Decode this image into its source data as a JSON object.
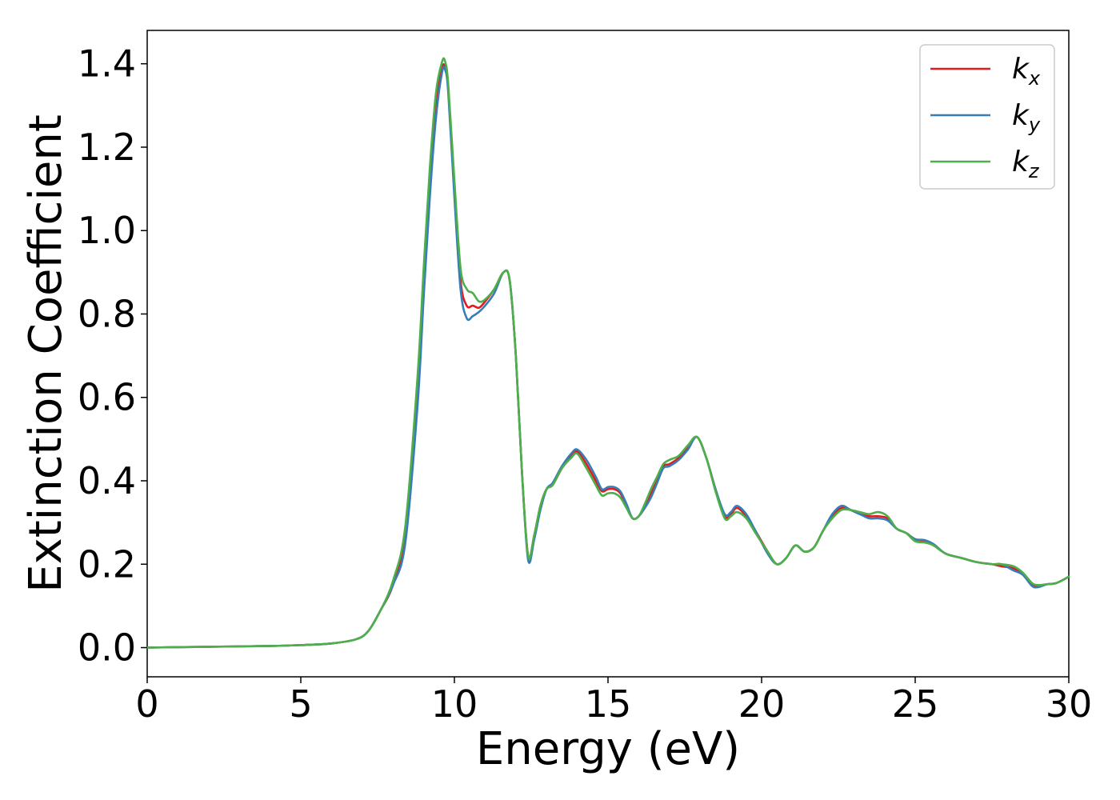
{
  "chart_data": {
    "type": "line",
    "title": "",
    "xlabel": "Energy (eV)",
    "ylabel": "Extinction Coefficient",
    "xlim": [
      0,
      30
    ],
    "ylim": [
      -0.07,
      1.48
    ],
    "xticks": [
      0,
      5,
      10,
      15,
      20,
      25,
      30
    ],
    "xtick_labels": [
      "0",
      "5",
      "10",
      "15",
      "20",
      "25",
      "30"
    ],
    "yticks": [
      0.0,
      0.2,
      0.4,
      0.6,
      0.8,
      1.0,
      1.2,
      1.4
    ],
    "ytick_labels": [
      "0.0",
      "0.2",
      "0.4",
      "0.6",
      "0.8",
      "1.0",
      "1.2",
      "1.4"
    ],
    "grid": false,
    "legend_position": "top-right",
    "series": [
      {
        "name": "k_x",
        "label_base": "k",
        "label_sub": "x",
        "color": "#e41a1c",
        "x": [
          0,
          2,
          4,
          5,
          6,
          6.8,
          7.2,
          7.6,
          8.0,
          8.4,
          8.8,
          9.0,
          9.2,
          9.4,
          9.6,
          9.7,
          9.8,
          10.0,
          10.2,
          10.4,
          10.6,
          10.8,
          11.0,
          11.3,
          11.6,
          11.8,
          12.0,
          12.2,
          12.4,
          12.6,
          12.8,
          13.0,
          13.2,
          13.5,
          13.8,
          14.0,
          14.3,
          14.6,
          14.8,
          15.0,
          15.2,
          15.4,
          15.6,
          15.8,
          16.0,
          16.2,
          16.4,
          16.6,
          16.8,
          17.0,
          17.3,
          17.6,
          17.9,
          18.2,
          18.5,
          18.8,
          19.0,
          19.2,
          19.5,
          19.8,
          20.2,
          20.5,
          20.8,
          21.1,
          21.4,
          21.7,
          22.0,
          22.3,
          22.6,
          22.9,
          23.2,
          23.5,
          23.8,
          24.1,
          24.4,
          24.7,
          25.0,
          25.3,
          25.6,
          26.0,
          26.5,
          27.0,
          27.5,
          27.8,
          28.2,
          28.5,
          28.8,
          29.0,
          29.3,
          29.6,
          30.0
        ],
        "y": [
          0.0,
          0.002,
          0.004,
          0.006,
          0.01,
          0.02,
          0.04,
          0.09,
          0.15,
          0.27,
          0.62,
          0.88,
          1.12,
          1.3,
          1.39,
          1.39,
          1.34,
          1.1,
          0.88,
          0.82,
          0.82,
          0.815,
          0.83,
          0.86,
          0.9,
          0.88,
          0.7,
          0.42,
          0.22,
          0.27,
          0.34,
          0.38,
          0.39,
          0.43,
          0.46,
          0.47,
          0.44,
          0.4,
          0.375,
          0.38,
          0.38,
          0.37,
          0.34,
          0.31,
          0.315,
          0.34,
          0.37,
          0.4,
          0.435,
          0.44,
          0.455,
          0.48,
          0.505,
          0.455,
          0.38,
          0.315,
          0.32,
          0.335,
          0.315,
          0.28,
          0.23,
          0.2,
          0.215,
          0.245,
          0.23,
          0.24,
          0.28,
          0.315,
          0.335,
          0.33,
          0.32,
          0.315,
          0.315,
          0.31,
          0.285,
          0.275,
          0.26,
          0.255,
          0.245,
          0.225,
          0.215,
          0.205,
          0.2,
          0.195,
          0.19,
          0.175,
          0.15,
          0.148,
          0.152,
          0.155,
          0.17
        ]
      },
      {
        "name": "k_y",
        "label_base": "k",
        "label_sub": "y",
        "color": "#377eb8",
        "x": [
          0,
          2,
          4,
          5,
          6,
          6.8,
          7.2,
          7.6,
          8.0,
          8.4,
          8.8,
          9.0,
          9.2,
          9.4,
          9.6,
          9.7,
          9.8,
          10.0,
          10.2,
          10.4,
          10.6,
          10.8,
          11.0,
          11.3,
          11.6,
          11.8,
          12.0,
          12.2,
          12.4,
          12.6,
          12.8,
          13.0,
          13.2,
          13.5,
          13.8,
          14.0,
          14.3,
          14.6,
          14.8,
          15.0,
          15.2,
          15.4,
          15.6,
          15.8,
          16.0,
          16.2,
          16.4,
          16.6,
          16.8,
          17.0,
          17.3,
          17.6,
          17.9,
          18.2,
          18.5,
          18.8,
          19.0,
          19.2,
          19.5,
          19.8,
          20.2,
          20.5,
          20.8,
          21.1,
          21.4,
          21.7,
          22.0,
          22.3,
          22.6,
          22.9,
          23.2,
          23.5,
          23.8,
          24.1,
          24.4,
          24.7,
          25.0,
          25.3,
          25.6,
          26.0,
          26.5,
          27.0,
          27.5,
          27.8,
          28.2,
          28.5,
          28.8,
          29.0,
          29.3,
          29.6,
          30.0
        ],
        "y": [
          0.0,
          0.002,
          0.004,
          0.006,
          0.01,
          0.02,
          0.04,
          0.09,
          0.15,
          0.25,
          0.58,
          0.84,
          1.08,
          1.27,
          1.38,
          1.385,
          1.33,
          1.08,
          0.86,
          0.79,
          0.795,
          0.805,
          0.82,
          0.85,
          0.9,
          0.88,
          0.7,
          0.42,
          0.21,
          0.26,
          0.33,
          0.38,
          0.395,
          0.435,
          0.465,
          0.475,
          0.45,
          0.41,
          0.38,
          0.385,
          0.385,
          0.375,
          0.345,
          0.31,
          0.315,
          0.335,
          0.36,
          0.395,
          0.43,
          0.435,
          0.45,
          0.475,
          0.505,
          0.455,
          0.38,
          0.32,
          0.325,
          0.34,
          0.32,
          0.28,
          0.225,
          0.2,
          0.215,
          0.245,
          0.23,
          0.24,
          0.28,
          0.32,
          0.34,
          0.33,
          0.32,
          0.31,
          0.31,
          0.305,
          0.285,
          0.275,
          0.26,
          0.258,
          0.248,
          0.225,
          0.215,
          0.205,
          0.2,
          0.2,
          0.185,
          0.175,
          0.148,
          0.145,
          0.152,
          0.155,
          0.17
        ]
      },
      {
        "name": "k_z",
        "label_base": "k",
        "label_sub": "z",
        "color": "#4daf4a",
        "x": [
          0,
          2,
          4,
          5,
          6,
          6.8,
          7.2,
          7.6,
          8.0,
          8.4,
          8.8,
          9.0,
          9.2,
          9.4,
          9.6,
          9.7,
          9.8,
          10.0,
          10.2,
          10.4,
          10.6,
          10.8,
          11.0,
          11.3,
          11.6,
          11.8,
          12.0,
          12.2,
          12.4,
          12.6,
          12.8,
          13.0,
          13.2,
          13.5,
          13.8,
          14.0,
          14.3,
          14.6,
          14.8,
          15.0,
          15.2,
          15.4,
          15.6,
          15.8,
          16.0,
          16.2,
          16.4,
          16.6,
          16.8,
          17.0,
          17.3,
          17.6,
          17.9,
          18.2,
          18.5,
          18.8,
          19.0,
          19.2,
          19.5,
          19.8,
          20.2,
          20.5,
          20.8,
          21.1,
          21.4,
          21.7,
          22.0,
          22.3,
          22.6,
          22.9,
          23.2,
          23.5,
          23.8,
          24.1,
          24.4,
          24.7,
          25.0,
          25.3,
          25.6,
          26.0,
          26.5,
          27.0,
          27.5,
          27.8,
          28.2,
          28.5,
          28.8,
          29.0,
          29.3,
          29.6,
          30.0
        ],
        "y": [
          0.0,
          0.002,
          0.004,
          0.006,
          0.01,
          0.02,
          0.04,
          0.09,
          0.16,
          0.29,
          0.65,
          0.91,
          1.15,
          1.33,
          1.405,
          1.405,
          1.35,
          1.12,
          0.91,
          0.86,
          0.85,
          0.83,
          0.835,
          0.86,
          0.9,
          0.88,
          0.7,
          0.42,
          0.22,
          0.27,
          0.34,
          0.38,
          0.39,
          0.43,
          0.455,
          0.465,
          0.43,
          0.39,
          0.365,
          0.37,
          0.37,
          0.36,
          0.335,
          0.31,
          0.315,
          0.345,
          0.38,
          0.41,
          0.44,
          0.45,
          0.46,
          0.485,
          0.505,
          0.455,
          0.375,
          0.31,
          0.315,
          0.325,
          0.31,
          0.275,
          0.23,
          0.2,
          0.215,
          0.245,
          0.23,
          0.24,
          0.28,
          0.31,
          0.33,
          0.33,
          0.325,
          0.32,
          0.325,
          0.315,
          0.285,
          0.275,
          0.255,
          0.252,
          0.245,
          0.225,
          0.215,
          0.205,
          0.2,
          0.2,
          0.195,
          0.18,
          0.155,
          0.15,
          0.152,
          0.155,
          0.17
        ]
      }
    ]
  }
}
